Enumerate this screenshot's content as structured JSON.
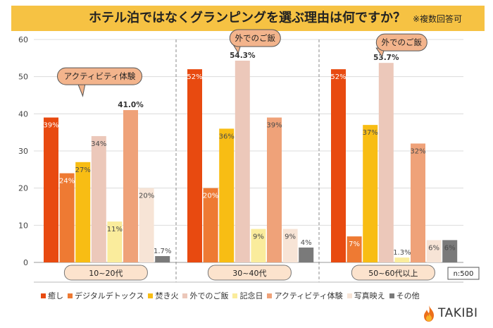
{
  "header": {
    "title": "ホテル泊ではなくグランピングを選ぶ理由は何ですか？",
    "note": "※複数回答可"
  },
  "colors": {
    "title_bg": "#f6c243",
    "series": [
      "#e84a10",
      "#ee7a33",
      "#f8bd14",
      "#ecc8ba",
      "#faec9c",
      "#efa279",
      "#f7e4d6",
      "#7a7a7a"
    ]
  },
  "chart_data": {
    "type": "bar",
    "ylim": [
      0,
      60
    ],
    "yticks": [
      0,
      10,
      20,
      30,
      40,
      50,
      60
    ],
    "categories": [
      "10~20代",
      "30~40代",
      "50~60代以上"
    ],
    "series": [
      {
        "name": "癒し",
        "values": [
          39,
          52,
          52
        ],
        "labels": [
          "39%",
          "52%",
          "52%"
        ]
      },
      {
        "name": "デジタルデトックス",
        "values": [
          24,
          20,
          7
        ],
        "labels": [
          "24%",
          "20%",
          "7%"
        ]
      },
      {
        "name": "焚き火",
        "values": [
          27,
          36,
          37
        ],
        "labels": [
          "27%",
          "36%",
          "37%"
        ]
      },
      {
        "name": "外でのご飯",
        "values": [
          34,
          54.3,
          53.7
        ],
        "labels": [
          "34%",
          "54.3%",
          "53.7%"
        ]
      },
      {
        "name": "記念日",
        "values": [
          11,
          9,
          1.3
        ],
        "labels": [
          "11%",
          "9%",
          "1.3%"
        ]
      },
      {
        "name": "アクティビティ体験",
        "values": [
          41.0,
          39,
          32
        ],
        "labels": [
          "41.0%",
          "39%",
          "32%"
        ]
      },
      {
        "name": "写真映え",
        "values": [
          20,
          9,
          6
        ],
        "labels": [
          "20%",
          "9%",
          "6%"
        ]
      },
      {
        "name": "その他",
        "values": [
          1.7,
          4,
          6
        ],
        "labels": [
          "1.7%",
          "4%",
          "6%"
        ]
      }
    ],
    "highlights": [
      {
        "group": 0,
        "series": 5,
        "text": "アクティビティ体験"
      },
      {
        "group": 1,
        "series": 3,
        "text": "外でのご飯"
      },
      {
        "group": 2,
        "series": 3,
        "text": "外でのご飯"
      }
    ],
    "sample_note": "n:500"
  },
  "brand": {
    "name": "TAKIBI"
  }
}
